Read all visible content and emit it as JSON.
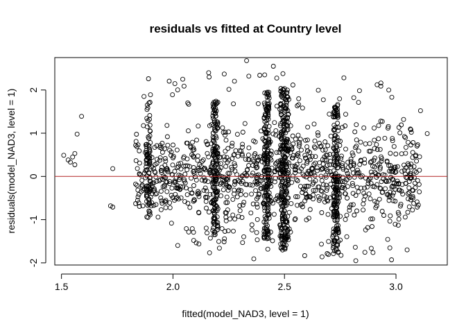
{
  "chart_data": {
    "type": "scatter",
    "title": "residuals vs fitted at Country level",
    "xlabel": "fitted(model_NAD3, level = 1)",
    "ylabel": "residuals(model_NAD3, level = 1)",
    "xlim": [
      1.47,
      3.23
    ],
    "ylim": [
      -2.05,
      2.75
    ],
    "xticks": [
      "1.5",
      "2.0",
      "2.5",
      "3.0"
    ],
    "yticks": [
      "-2",
      "-1",
      "0",
      "1",
      "2"
    ],
    "reference_line": {
      "y": 0,
      "color": "#b22222"
    },
    "point_style": "open-circle",
    "grid": false,
    "notable_points": [
      {
        "x": 1.51,
        "y": 0.49
      },
      {
        "x": 1.53,
        "y": 0.38
      },
      {
        "x": 1.54,
        "y": 0.33
      },
      {
        "x": 1.55,
        "y": 0.45
      },
      {
        "x": 1.56,
        "y": 0.53
      },
      {
        "x": 1.56,
        "y": 0.27
      },
      {
        "x": 1.57,
        "y": 0.98
      },
      {
        "x": 1.59,
        "y": 1.39
      },
      {
        "x": 1.73,
        "y": 0.18
      },
      {
        "x": 1.72,
        "y": -0.68
      },
      {
        "x": 1.73,
        "y": -0.71
      },
      {
        "x": 2.33,
        "y": 2.68
      },
      {
        "x": 2.34,
        "y": 2.32
      },
      {
        "x": 2.45,
        "y": 2.55
      },
      {
        "x": 2.16,
        "y": 2.4
      },
      {
        "x": 2.23,
        "y": 2.37
      },
      {
        "x": 3.05,
        "y": -1.7
      },
      {
        "x": 2.82,
        "y": -1.95
      },
      {
        "x": 2.98,
        "y": -1.93
      },
      {
        "x": 3.14,
        "y": 0.99
      },
      {
        "x": 3.11,
        "y": 1.52
      },
      {
        "x": 1.89,
        "y": 2.26
      },
      {
        "x": 1.87,
        "y": 1.85
      }
    ]
  }
}
